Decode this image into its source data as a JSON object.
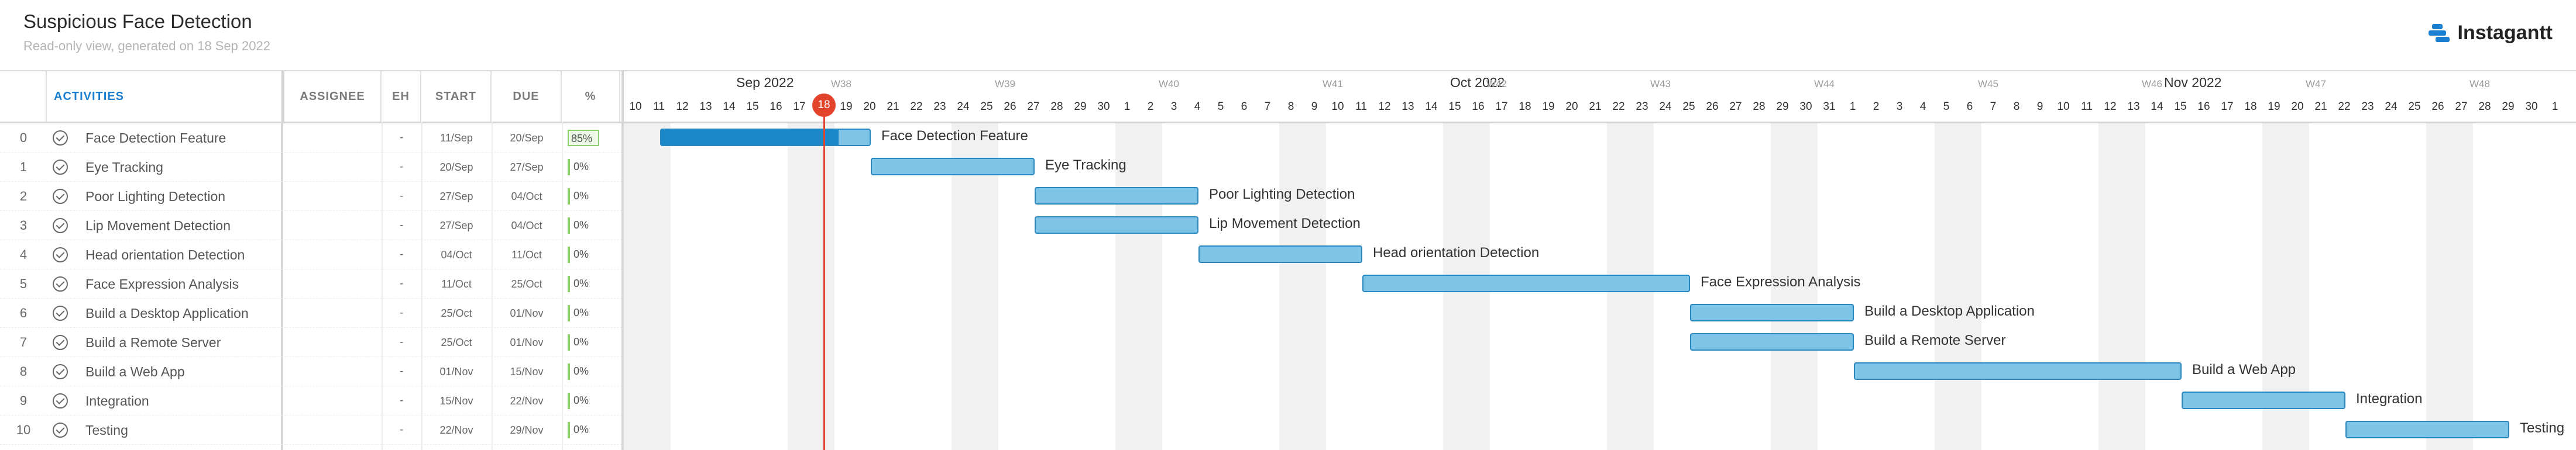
{
  "header": {
    "title": "Suspicious Face Detection",
    "subtitle": "Read-only view, generated on 18 Sep 2022",
    "brand": "Instagantt"
  },
  "columns": {
    "activities": "ACTIVITIES",
    "assignee": "ASSIGNEE",
    "eh": "EH",
    "start": "START",
    "due": "DUE",
    "pct": "%"
  },
  "timeline": {
    "today_label": "18",
    "months": [
      "Sep 2022",
      "Oct 2022",
      "Nov 2022"
    ],
    "weeks": [
      "W38",
      "W39",
      "W40",
      "W41",
      "W42",
      "W43",
      "W44",
      "W45",
      "W46",
      "W47",
      "W48"
    ],
    "days": [
      "10",
      "11",
      "12",
      "13",
      "14",
      "15",
      "16",
      "17",
      "18",
      "19",
      "20",
      "21",
      "22",
      "23",
      "24",
      "25",
      "26",
      "27",
      "28",
      "29",
      "30",
      "1",
      "2",
      "3",
      "4",
      "5",
      "6",
      "7",
      "8",
      "9",
      "10",
      "11",
      "12",
      "13",
      "14",
      "15",
      "16",
      "17",
      "18",
      "19",
      "20",
      "21",
      "22",
      "23",
      "24",
      "25",
      "26",
      "27",
      "28",
      "29",
      "30",
      "31",
      "1",
      "2",
      "3",
      "4",
      "5",
      "6",
      "7",
      "8",
      "9",
      "10",
      "11",
      "12",
      "13",
      "14",
      "15",
      "16",
      "17",
      "18",
      "19",
      "20",
      "21",
      "22",
      "23",
      "24",
      "25",
      "26",
      "27",
      "28",
      "29",
      "30",
      "1"
    ]
  },
  "tasks": [
    {
      "num": "0",
      "name": "Face Detection Feature",
      "eh": "-",
      "start": "11/Sep",
      "due": "20/Sep",
      "pct": "85%",
      "progress": 0.85
    },
    {
      "num": "1",
      "name": "Eye Tracking",
      "eh": "-",
      "start": "20/Sep",
      "due": "27/Sep",
      "pct": "0%",
      "progress": 0
    },
    {
      "num": "2",
      "name": "Poor Lighting Detection",
      "eh": "-",
      "start": "27/Sep",
      "due": "04/Oct",
      "pct": "0%",
      "progress": 0
    },
    {
      "num": "3",
      "name": "Lip Movement Detection",
      "eh": "-",
      "start": "27/Sep",
      "due": "04/Oct",
      "pct": "0%",
      "progress": 0
    },
    {
      "num": "4",
      "name": "Head orientation Detection",
      "eh": "-",
      "start": "04/Oct",
      "due": "11/Oct",
      "pct": "0%",
      "progress": 0
    },
    {
      "num": "5",
      "name": "Face Expression Analysis",
      "eh": "-",
      "start": "11/Oct",
      "due": "25/Oct",
      "pct": "0%",
      "progress": 0
    },
    {
      "num": "6",
      "name": "Build a Desktop Application",
      "eh": "-",
      "start": "25/Oct",
      "due": "01/Nov",
      "pct": "0%",
      "progress": 0
    },
    {
      "num": "7",
      "name": "Build a Remote Server",
      "eh": "-",
      "start": "25/Oct",
      "due": "01/Nov",
      "pct": "0%",
      "progress": 0
    },
    {
      "num": "8",
      "name": "Build a Web App",
      "eh": "-",
      "start": "01/Nov",
      "due": "15/Nov",
      "pct": "0%",
      "progress": 0
    },
    {
      "num": "9",
      "name": "Integration",
      "eh": "-",
      "start": "15/Nov",
      "due": "22/Nov",
      "pct": "0%",
      "progress": 0
    },
    {
      "num": "10",
      "name": "Testing",
      "eh": "-",
      "start": "22/Nov",
      "due": "29/Nov",
      "pct": "0%",
      "progress": 0
    }
  ]
}
